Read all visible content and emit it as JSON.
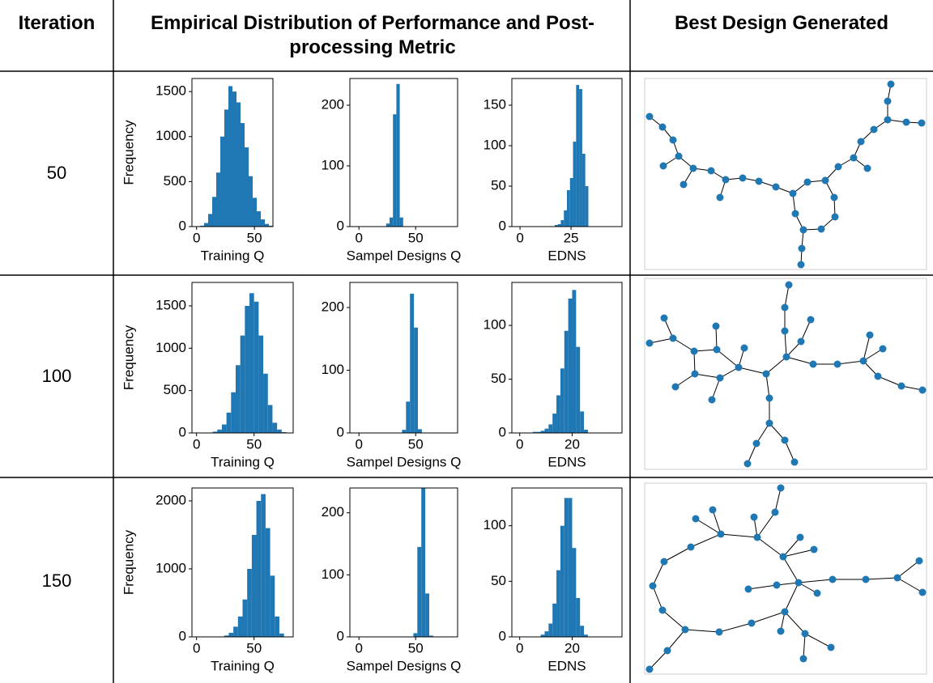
{
  "table": {
    "headers": [
      "Iteration",
      "Empirical Distribution of Performance and Post-processing Metric",
      "Best Design Generated"
    ],
    "rows": [
      "50",
      "100",
      "150"
    ]
  },
  "chart_data": [
    {
      "type": "histogram",
      "xlabel": "Training Q",
      "ylabel": "Frequency",
      "color": "#1f77b4",
      "bins": [
        3,
        6.5,
        10,
        13.5,
        17,
        20.5,
        24,
        27.5,
        31,
        34.5,
        38,
        41.5,
        45,
        48.5,
        52,
        55.5,
        59,
        62.5,
        66
      ],
      "values": [
        10,
        40,
        140,
        330,
        600,
        1000,
        1300,
        1560,
        1500,
        1380,
        1150,
        880,
        560,
        320,
        170,
        80,
        30,
        10
      ],
      "xlim": [
        -4,
        66
      ],
      "ylim": [
        0,
        1645
      ],
      "xticks": [
        0,
        50
      ],
      "yticks": [
        0,
        500,
        1000,
        1500
      ]
    },
    {
      "type": "histogram",
      "xlabel": "Sampel Designs Q",
      "color": "#1f77b4",
      "bins": [
        24,
        27,
        30,
        33,
        36,
        39
      ],
      "values": [
        5,
        15,
        185,
        235,
        15
      ],
      "xlim": [
        -8,
        87
      ],
      "ylim": [
        0,
        244
      ],
      "xticks": [
        0,
        50
      ],
      "yticks": [
        0,
        100,
        200
      ]
    },
    {
      "type": "histogram",
      "xlabel": "EDNS",
      "color": "#1f77b4",
      "bins": [
        17,
        18.5,
        20,
        21.5,
        23,
        24.5,
        26,
        27.5,
        29,
        30.5,
        32,
        33.5
      ],
      "values": [
        2,
        3,
        8,
        20,
        45,
        60,
        105,
        175,
        170,
        90,
        50
      ],
      "xlim": [
        -4,
        50
      ],
      "ylim": [
        0,
        183
      ],
      "xticks": [
        0,
        25
      ],
      "yticks": [
        0,
        50,
        100,
        150
      ]
    },
    {
      "type": "histogram",
      "xlabel": "Training Q",
      "ylabel": "Frequency",
      "color": "#1f77b4",
      "bins": [
        10,
        14,
        18,
        22,
        26,
        30,
        34,
        38,
        42,
        46,
        50,
        54,
        58,
        62,
        66,
        70,
        74,
        78
      ],
      "values": [
        5,
        15,
        40,
        100,
        240,
        480,
        800,
        1150,
        1500,
        1650,
        1550,
        1150,
        700,
        330,
        120,
        40,
        10
      ],
      "xlim": [
        -4,
        84
      ],
      "ylim": [
        0,
        1777
      ],
      "xticks": [
        0,
        50
      ],
      "yticks": [
        0,
        500,
        1000,
        1500
      ]
    },
    {
      "type": "histogram",
      "xlabel": "Sampel Designs Q",
      "color": "#1f77b4",
      "bins": [
        38,
        41.5,
        45,
        48.5,
        52,
        55.5
      ],
      "values": [
        5,
        50,
        222,
        168,
        6
      ],
      "xlim": [
        -8,
        87
      ],
      "ylim": [
        0,
        240
      ],
      "xticks": [
        0,
        50
      ],
      "yticks": [
        0,
        100,
        200
      ]
    },
    {
      "type": "histogram",
      "xlabel": "EDNS",
      "color": "#1f77b4",
      "bins": [
        5,
        6.5,
        8,
        9.5,
        11,
        12.5,
        14,
        15.5,
        17,
        18.5,
        20,
        21.5,
        23,
        24.5,
        26
      ],
      "values": [
        1,
        1,
        2,
        4,
        8,
        18,
        35,
        60,
        95,
        125,
        133,
        80,
        20,
        3
      ],
      "xlim": [
        -3,
        39
      ],
      "ylim": [
        0,
        140
      ],
      "xticks": [
        0,
        20
      ],
      "yticks": [
        0,
        50,
        100
      ]
    },
    {
      "type": "histogram",
      "xlabel": "Training Q",
      "ylabel": "Frequency",
      "color": "#1f77b4",
      "bins": [
        20,
        24,
        28,
        32,
        36,
        40,
        44,
        48,
        52,
        56,
        60,
        64,
        68,
        72,
        76,
        80
      ],
      "values": [
        5,
        20,
        60,
        150,
        300,
        550,
        1000,
        1500,
        2000,
        2100,
        1600,
        900,
        300,
        50,
        5
      ],
      "xlim": [
        -4,
        84
      ],
      "ylim": [
        0,
        2190
      ],
      "xticks": [
        0,
        50
      ],
      "yticks": [
        0,
        1000,
        2000
      ]
    },
    {
      "type": "histogram",
      "xlabel": "Sampel Designs Q",
      "color": "#1f77b4",
      "bins": [
        48,
        51.5,
        55,
        58.5,
        62,
        65.5
      ],
      "values": [
        6,
        145,
        240,
        70,
        2
      ],
      "xlim": [
        -8,
        87
      ],
      "ylim": [
        0,
        240
      ],
      "xticks": [
        0,
        50
      ],
      "yticks": [
        0,
        100,
        200
      ]
    },
    {
      "type": "histogram",
      "xlabel": "EDNS",
      "color": "#1f77b4",
      "bins": [
        8,
        9.5,
        11,
        12.5,
        14,
        15.5,
        17,
        18.5,
        20,
        21.5,
        23,
        24.5,
        26
      ],
      "values": [
        2,
        5,
        12,
        30,
        60,
        100,
        125,
        125,
        80,
        35,
        10,
        2
      ],
      "xlim": [
        -3,
        39
      ],
      "ylim": [
        0,
        134
      ],
      "xticks": [
        0,
        20
      ],
      "yticks": [
        0,
        50,
        100
      ]
    }
  ]
}
